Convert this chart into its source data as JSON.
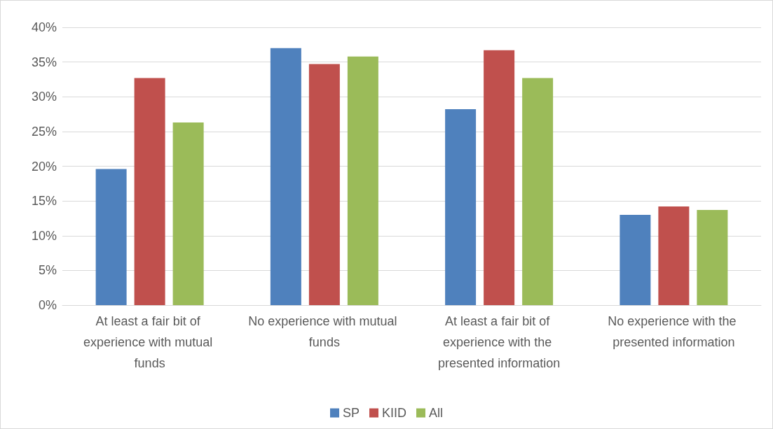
{
  "chart_data": {
    "type": "bar",
    "categories": [
      "At least a fair bit of experience with mutual funds",
      "No experience with mutual funds",
      "At least a fair bit of experience with the presented information",
      "No experience with the presented information"
    ],
    "series": [
      {
        "name": "SP",
        "color": "#4f81bd",
        "values": [
          19.6,
          37.0,
          28.2,
          13.0
        ]
      },
      {
        "name": "KIID",
        "color": "#c0504d",
        "values": [
          32.7,
          34.7,
          36.7,
          14.2
        ]
      },
      {
        "name": "All",
        "color": "#9bbb59",
        "values": [
          26.3,
          35.8,
          32.7,
          13.7
        ]
      }
    ],
    "ylim": [
      0,
      40
    ],
    "yticks": [
      {
        "value": 0,
        "label": "0%"
      },
      {
        "value": 5,
        "label": "5%"
      },
      {
        "value": 10,
        "label": "10%"
      },
      {
        "value": 15,
        "label": "15%"
      },
      {
        "value": 20,
        "label": "20%"
      },
      {
        "value": 25,
        "label": "25%"
      },
      {
        "value": 30,
        "label": "30%"
      },
      {
        "value": 35,
        "label": "35%"
      },
      {
        "value": 40,
        "label": "40%"
      }
    ],
    "grid": "y",
    "legend": "bottom"
  }
}
